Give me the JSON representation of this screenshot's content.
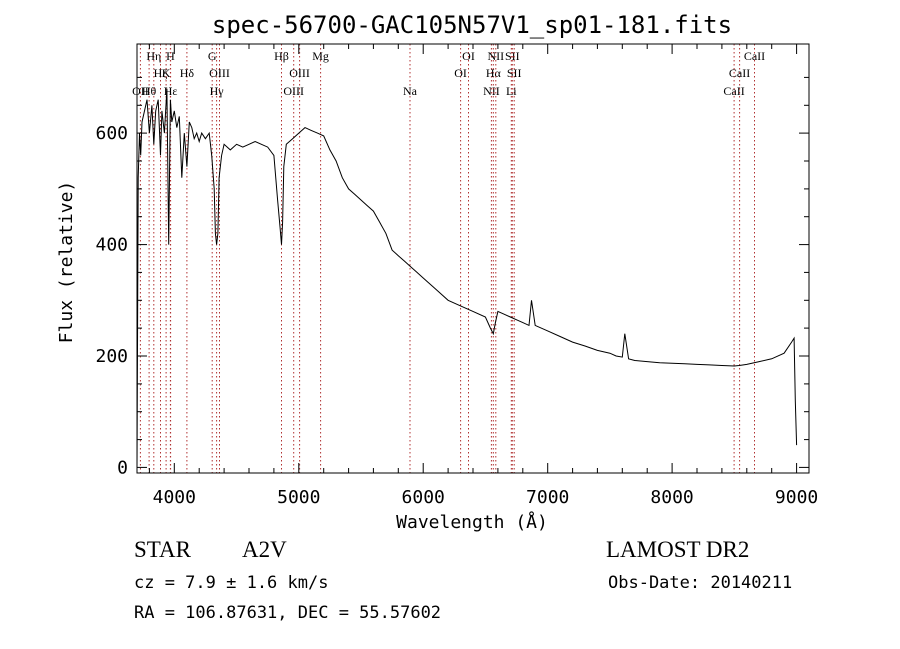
{
  "chart_data": {
    "type": "line",
    "title": "spec-56700-GAC105N57V1_sp01-181.fits",
    "xlabel": "Wavelength (Å)",
    "ylabel": "Flux (relative)",
    "xlim": [
      3700,
      9100
    ],
    "ylim": [
      -10,
      760
    ],
    "xticks": [
      4000,
      5000,
      6000,
      7000,
      8000,
      9000
    ],
    "yticks": [
      0,
      200,
      400,
      600
    ],
    "grid": false,
    "series": [
      {
        "color": "#000000",
        "x": [
          3700,
          3710,
          3720,
          3730,
          3740,
          3760,
          3780,
          3800,
          3820,
          3835,
          3850,
          3870,
          3889,
          3900,
          3920,
          3940,
          3955,
          3968,
          3980,
          4000,
          4020,
          4040,
          4060,
          4080,
          4101,
          4120,
          4140,
          4160,
          4180,
          4200,
          4220,
          4250,
          4280,
          4300,
          4320,
          4330,
          4340,
          4350,
          4360,
          4380,
          4400,
          4450,
          4500,
          4550,
          4600,
          4650,
          4700,
          4750,
          4800,
          4830,
          4850,
          4861,
          4870,
          4880,
          4900,
          4950,
          5000,
          5050,
          5100,
          5150,
          5200,
          5250,
          5300,
          5350,
          5400,
          5450,
          5500,
          5550,
          5600,
          5650,
          5700,
          5750,
          5800,
          5850,
          5900,
          5950,
          6000,
          6100,
          6200,
          6300,
          6400,
          6500,
          6540,
          6563,
          6580,
          6600,
          6650,
          6700,
          6750,
          6800,
          6850,
          6870,
          6900,
          7000,
          7100,
          7200,
          7300,
          7400,
          7500,
          7550,
          7600,
          7620,
          7650,
          7700,
          7800,
          7900,
          8000,
          8100,
          8200,
          8300,
          8400,
          8500,
          8540,
          8600,
          8700,
          8800,
          8900,
          8960,
          8980,
          8990,
          9000
        ],
        "y": [
          0,
          520,
          600,
          560,
          620,
          640,
          660,
          600,
          650,
          580,
          640,
          660,
          560,
          640,
          600,
          680,
          400,
          660,
          620,
          640,
          610,
          630,
          520,
          600,
          540,
          620,
          610,
          590,
          600,
          585,
          600,
          590,
          600,
          560,
          500,
          420,
          400,
          420,
          520,
          560,
          580,
          570,
          580,
          575,
          580,
          585,
          580,
          575,
          560,
          480,
          430,
          400,
          440,
          540,
          580,
          590,
          600,
          610,
          605,
          600,
          595,
          570,
          550,
          520,
          500,
          490,
          480,
          470,
          460,
          440,
          420,
          390,
          380,
          370,
          360,
          350,
          340,
          320,
          300,
          290,
          280,
          270,
          250,
          240,
          260,
          280,
          275,
          270,
          265,
          260,
          255,
          300,
          255,
          245,
          235,
          225,
          218,
          210,
          205,
          200,
          198,
          240,
          195,
          192,
          190,
          188,
          187,
          186,
          185,
          184,
          183,
          182,
          183,
          185,
          190,
          195,
          205,
          225,
          232,
          120,
          40
        ]
      }
    ],
    "line_markers": [
      {
        "label": "OII",
        "x": 3727,
        "row": 3
      },
      {
        "label": "Hθ",
        "x": 3797,
        "row": 3
      },
      {
        "label": "Hη",
        "x": 3835,
        "row": 1
      },
      {
        "label": "Hζ",
        "x": 3889,
        "row": 2
      },
      {
        "label": "K",
        "x": 3934,
        "row": 2
      },
      {
        "label": "H",
        "x": 3968,
        "row": 1
      },
      {
        "label": "Hε",
        "x": 3970,
        "row": 3
      },
      {
        "label": "Hδ",
        "x": 4101,
        "row": 2
      },
      {
        "label": "G",
        "x": 4304,
        "row": 1
      },
      {
        "label": "Hγ",
        "x": 4340,
        "row": 3
      },
      {
        "label": "OIII",
        "x": 4363,
        "row": 2
      },
      {
        "label": "Hβ",
        "x": 4861,
        "row": 1
      },
      {
        "label": "OIII",
        "x": 4959,
        "row": 3
      },
      {
        "label": "OIII",
        "x": 5007,
        "row": 2
      },
      {
        "label": "Mg",
        "x": 5175,
        "row": 1
      },
      {
        "label": "Na",
        "x": 5894,
        "row": 3
      },
      {
        "label": "OI",
        "x": 6300,
        "row": 2
      },
      {
        "label": "OI",
        "x": 6364,
        "row": 1
      },
      {
        "label": "NII",
        "x": 6548,
        "row": 3
      },
      {
        "label": "Hα",
        "x": 6563,
        "row": 2
      },
      {
        "label": "NII",
        "x": 6583,
        "row": 1
      },
      {
        "label": "SII",
        "x": 6716,
        "row": 1
      },
      {
        "label": "SII",
        "x": 6731,
        "row": 2
      },
      {
        "label": "Li",
        "x": 6708,
        "row": 3
      },
      {
        "label": "CaII",
        "x": 8498,
        "row": 3
      },
      {
        "label": "CaII",
        "x": 8542,
        "row": 2
      },
      {
        "label": "CaII",
        "x": 8662,
        "row": 1
      }
    ]
  },
  "info": {
    "class_label": "STAR",
    "subclass": "A2V",
    "survey": "LAMOST DR2",
    "cz": "cz = 7.9 ± 1.6 km/s",
    "obs_date": "Obs-Date: 20140211",
    "radec": "RA = 106.87631, DEC =  55.57602"
  }
}
